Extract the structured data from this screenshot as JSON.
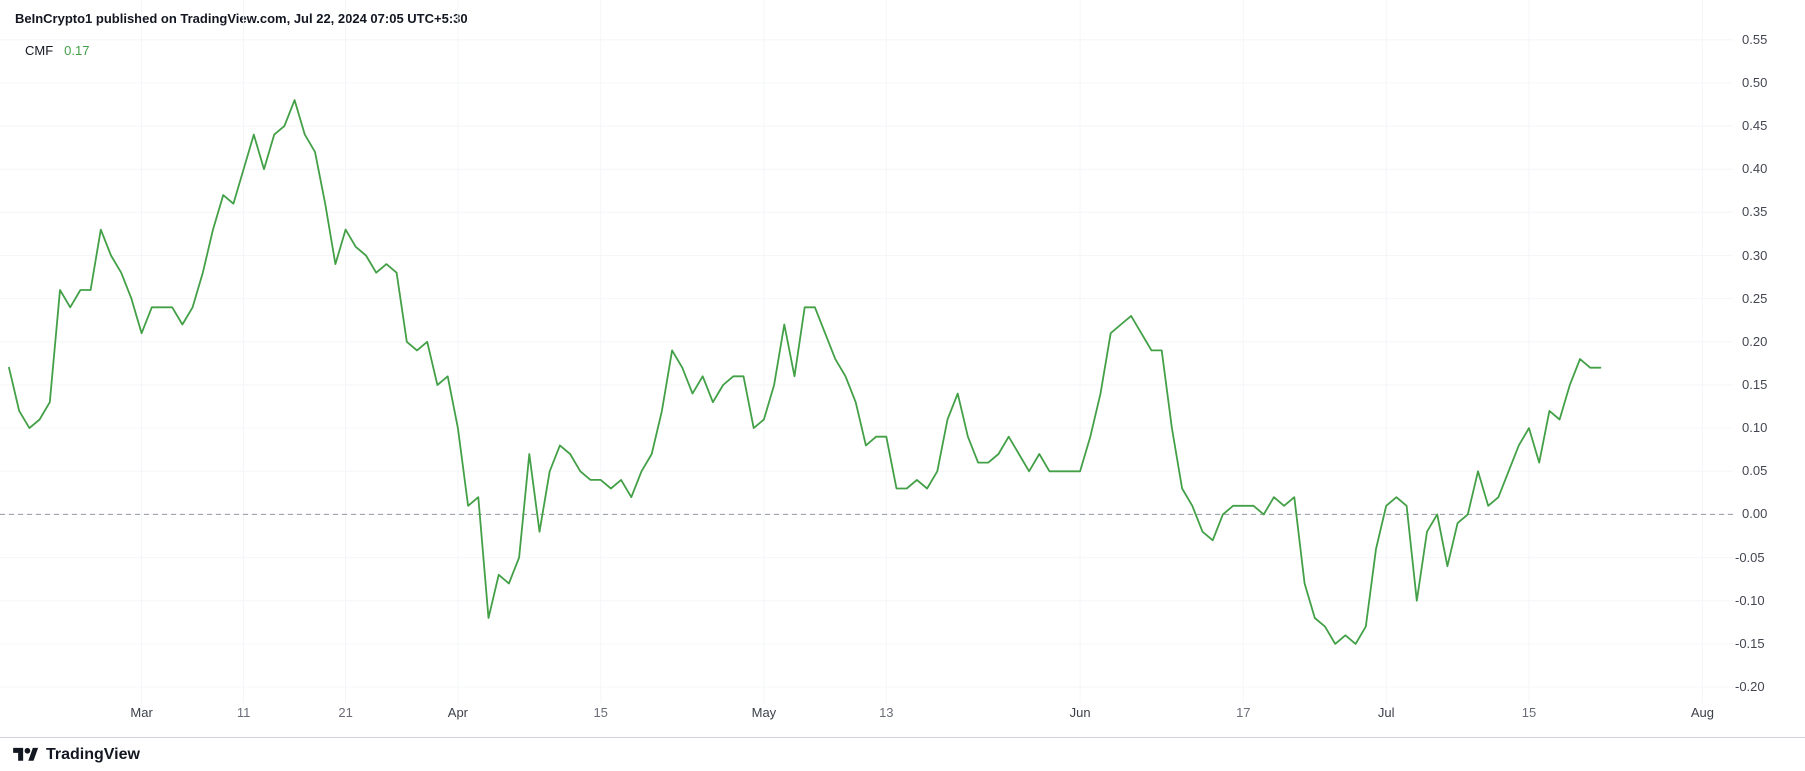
{
  "header": {
    "attribution": "BeInCrypto1 published on TradingView.com, Jul 22, 2024 07:05 UTC+5:30"
  },
  "legend": {
    "indicator": "CMF",
    "value": "0.17"
  },
  "footer": {
    "brand": "TradingView",
    "logo_icon": "tradingview-logo"
  },
  "colors": {
    "background": "#ffffff",
    "line": "#43a047",
    "value_text": "#43a047",
    "attribution_text": "#131722",
    "axis_text": "#434651",
    "minor_axis_text": "#6a6d78",
    "zero_line": "#9598a1",
    "grid": "#f4f6f9",
    "divider": "#d1d4dc",
    "brand_text": "#131722"
  },
  "chart_data": {
    "type": "line",
    "title": "CMF (Chaikin Money Flow)",
    "xlabel": "",
    "ylabel": "",
    "legend_position": "top-left",
    "grid": "faint",
    "zero_line": 0,
    "ylim": [
      -0.215,
      0.596
    ],
    "x_max_idx": 169,
    "y_ticks": [
      0.55,
      0.5,
      0.45,
      0.4,
      0.35,
      0.3,
      0.25,
      0.2,
      0.15,
      0.1,
      0.05,
      0.0,
      -0.05,
      -0.1,
      -0.15,
      -0.2
    ],
    "x_ticks": [
      {
        "label": "Mar",
        "idx": 13,
        "type": "month"
      },
      {
        "label": "11",
        "idx": 23,
        "type": "day"
      },
      {
        "label": "21",
        "idx": 33,
        "type": "day"
      },
      {
        "label": "Apr",
        "idx": 44,
        "type": "month"
      },
      {
        "label": "15",
        "idx": 58,
        "type": "day"
      },
      {
        "label": "May",
        "idx": 74,
        "type": "month"
      },
      {
        "label": "13",
        "idx": 86,
        "type": "day"
      },
      {
        "label": "Jun",
        "idx": 105,
        "type": "month"
      },
      {
        "label": "17",
        "idx": 121,
        "type": "day"
      },
      {
        "label": "Jul",
        "idx": 135,
        "type": "month"
      },
      {
        "label": "15",
        "idx": 149,
        "type": "day"
      },
      {
        "label": "Aug",
        "idx": 166,
        "type": "month"
      }
    ],
    "series": [
      {
        "name": "CMF",
        "color": "#43a047",
        "last_value": 0.17,
        "values": [
          0.17,
          0.12,
          0.1,
          0.11,
          0.13,
          0.26,
          0.24,
          0.26,
          0.26,
          0.33,
          0.3,
          0.28,
          0.25,
          0.21,
          0.24,
          0.24,
          0.24,
          0.22,
          0.24,
          0.28,
          0.33,
          0.37,
          0.36,
          0.4,
          0.44,
          0.4,
          0.44,
          0.45,
          0.48,
          0.44,
          0.42,
          0.36,
          0.29,
          0.33,
          0.31,
          0.3,
          0.28,
          0.29,
          0.28,
          0.2,
          0.19,
          0.2,
          0.15,
          0.16,
          0.1,
          0.01,
          0.02,
          -0.12,
          -0.07,
          -0.08,
          -0.05,
          0.07,
          -0.02,
          0.05,
          0.08,
          0.07,
          0.05,
          0.04,
          0.04,
          0.03,
          0.04,
          0.02,
          0.05,
          0.07,
          0.12,
          0.19,
          0.17,
          0.14,
          0.16,
          0.13,
          0.15,
          0.16,
          0.16,
          0.1,
          0.11,
          0.15,
          0.22,
          0.16,
          0.24,
          0.24,
          0.21,
          0.18,
          0.16,
          0.13,
          0.08,
          0.09,
          0.09,
          0.03,
          0.03,
          0.04,
          0.03,
          0.05,
          0.11,
          0.14,
          0.09,
          0.06,
          0.06,
          0.07,
          0.09,
          0.07,
          0.05,
          0.07,
          0.05,
          0.05,
          0.05,
          0.05,
          0.09,
          0.14,
          0.21,
          0.22,
          0.23,
          0.21,
          0.19,
          0.19,
          0.1,
          0.03,
          0.01,
          -0.02,
          -0.03,
          0.0,
          0.01,
          0.01,
          0.01,
          0.0,
          0.02,
          0.01,
          0.02,
          -0.08,
          -0.12,
          -0.13,
          -0.15,
          -0.14,
          -0.15,
          -0.13,
          -0.04,
          0.01,
          0.02,
          0.01,
          -0.1,
          -0.02,
          0.0,
          -0.06,
          -0.01,
          0.0,
          0.05,
          0.01,
          0.02,
          0.05,
          0.08,
          0.1,
          0.06,
          0.12,
          0.11,
          0.15,
          0.18,
          0.17,
          0.17
        ]
      }
    ]
  }
}
